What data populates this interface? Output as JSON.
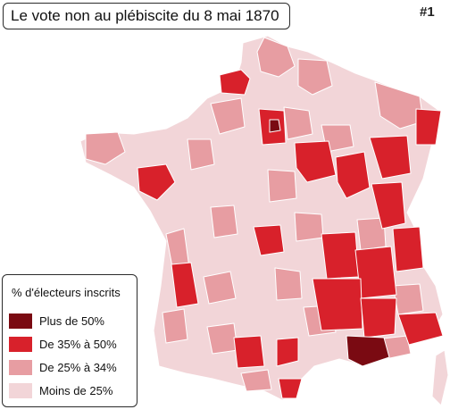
{
  "title": "Le vote non au plébiscite du 8 mai 1870",
  "map_number": "#1",
  "legend": {
    "title": "% d'électeurs inscrits",
    "items": [
      {
        "label": "Plus de 50%",
        "color": "#7a0a12"
      },
      {
        "label": "De 35% à 50%",
        "color": "#d8212b"
      },
      {
        "label": "De 25% à 34%",
        "color": "#e79da2"
      },
      {
        "label": "Moins de 25%",
        "color": "#f2d5d8"
      }
    ]
  },
  "border_color": "#ffffff"
}
